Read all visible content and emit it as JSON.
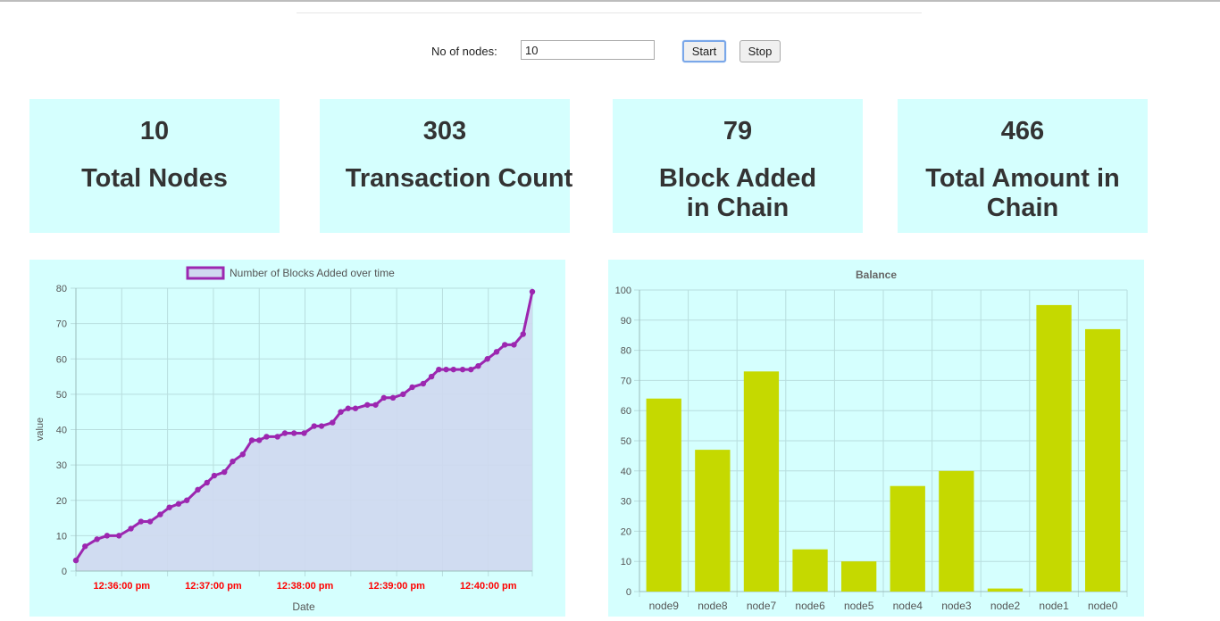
{
  "controls": {
    "nodes_label": "No of nodes:",
    "nodes_value": "10",
    "start_label": "Start",
    "stop_label": "Stop"
  },
  "stats": [
    {
      "value": "10",
      "label": "Total Nodes"
    },
    {
      "value": "303",
      "label": "Transaction Count"
    },
    {
      "value": "79",
      "label": "Block Added in Chain"
    },
    {
      "value": "466",
      "label": "Total Amount in Chain"
    }
  ],
  "chart_data": [
    {
      "type": "area",
      "title": "",
      "legend": [
        "Number of Blocks Added over time"
      ],
      "legend_position": "top",
      "xlabel": "Date",
      "ylabel": "value",
      "ylim": [
        0,
        80
      ],
      "yticks": [
        0,
        10,
        20,
        30,
        40,
        50,
        60,
        70,
        80
      ],
      "xticks": [
        "12:36:00 pm",
        "12:37:00 pm",
        "12:38:00 pm",
        "12:39:00 pm",
        "12:40:00 pm"
      ],
      "x_range_minutes": [
        0,
        4.98
      ],
      "grid": true,
      "colors": {
        "line": "#9c27b0",
        "fill": "#cfd8f0",
        "tick_text": "#ff0000"
      },
      "series": [
        {
          "name": "Number of Blocks Added over time",
          "x": [
            0,
            0.1,
            0.23,
            0.34,
            0.47,
            0.6,
            0.71,
            0.81,
            0.92,
            1.02,
            1.12,
            1.21,
            1.33,
            1.43,
            1.51,
            1.62,
            1.71,
            1.82,
            1.92,
            2.0,
            2.08,
            2.2,
            2.28,
            2.38,
            2.49,
            2.6,
            2.68,
            2.8,
            2.89,
            2.97,
            3.05,
            3.18,
            3.27,
            3.36,
            3.46,
            3.57,
            3.67,
            3.79,
            3.88,
            3.96,
            4.04,
            4.12,
            4.22,
            4.31,
            4.39,
            4.49,
            4.59,
            4.68,
            4.78,
            4.88,
            4.98
          ],
          "values": [
            3,
            7,
            9,
            10,
            10,
            12,
            14,
            14,
            16,
            18,
            19,
            20,
            23,
            25,
            27,
            28,
            31,
            33,
            37,
            37,
            38,
            38,
            39,
            39,
            39,
            41,
            41,
            42,
            45,
            46,
            46,
            47,
            47,
            49,
            49,
            50,
            52,
            53,
            55,
            57,
            57,
            57,
            57,
            57,
            58,
            60,
            62,
            64,
            64,
            67,
            79
          ]
        }
      ]
    },
    {
      "type": "bar",
      "title": "Balance",
      "categories": [
        "node9",
        "node8",
        "node7",
        "node6",
        "node5",
        "node4",
        "node3",
        "node2",
        "node1",
        "node0"
      ],
      "values": [
        64,
        47,
        73,
        14,
        10,
        35,
        40,
        1,
        95,
        87
      ],
      "ylim": [
        0,
        100
      ],
      "yticks": [
        0,
        10,
        20,
        30,
        40,
        50,
        60,
        70,
        80,
        90,
        100
      ],
      "grid": true,
      "colors": {
        "bar": "#c5d900"
      }
    }
  ]
}
